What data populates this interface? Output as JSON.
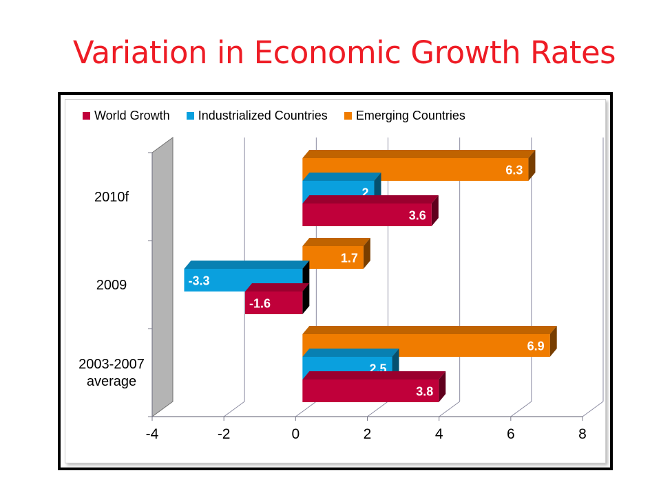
{
  "page": {
    "title": "Variation in Economic Growth Rates"
  },
  "chart_data": {
    "type": "bar",
    "orientation": "horizontal",
    "title": "",
    "xlabel": "",
    "ylabel": "",
    "xlim": [
      -4,
      8
    ],
    "x_ticks": [
      "-4",
      "-2",
      "0",
      "2",
      "4",
      "6",
      "8"
    ],
    "categories": [
      "2010f",
      "2009",
      "2003-2007 average"
    ],
    "series": [
      {
        "name": "World Growth",
        "color": "#c0003a",
        "values": [
          3.6,
          -1.6,
          3.8
        ],
        "labels": [
          "3.6",
          "-1.6",
          "3.8"
        ]
      },
      {
        "name": "Industrialized Countries",
        "color": "#0aa0de",
        "values": [
          2,
          -3.3,
          2.5
        ],
        "labels": [
          "2",
          "-3.3",
          "2.5"
        ]
      },
      {
        "name": "Emerging Countries",
        "color": "#f07c00",
        "values": [
          6.3,
          1.7,
          6.9
        ],
        "labels": [
          "6.3",
          "1.7",
          "6.9"
        ]
      }
    ],
    "legend_position": "top",
    "grid": true,
    "style": "3d"
  }
}
